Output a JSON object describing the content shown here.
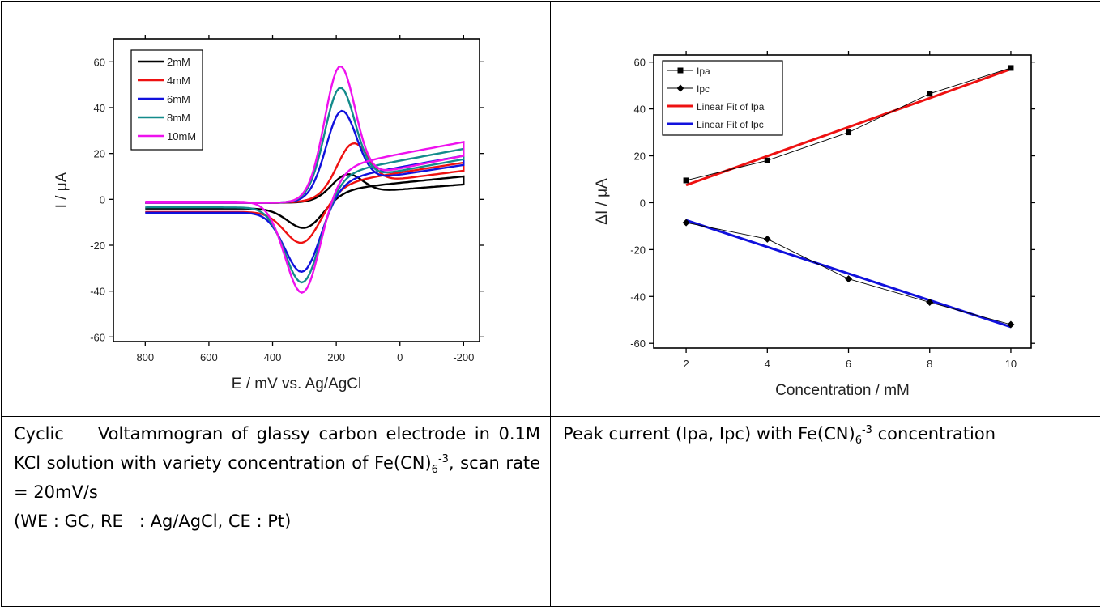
{
  "charts": [
    {
      "type": "line",
      "xlabel": "E / mV vs. Ag/AgCl",
      "ylabel": "I / μA",
      "xlim": [
        900,
        -250
      ],
      "ylim": [
        -62,
        70
      ],
      "xticks": [
        "800",
        "600",
        "400",
        "200",
        "0",
        "-200"
      ],
      "xtick_values": [
        800,
        600,
        400,
        200,
        0,
        -200
      ],
      "yticks": [
        "-60",
        "-40",
        "-20",
        "0",
        "20",
        "40",
        "60"
      ],
      "ytick_values": [
        -60,
        -40,
        -20,
        0,
        20,
        40,
        60
      ],
      "legend_position": "top-left",
      "series": [
        {
          "name": "2mM",
          "color": "#000000",
          "ipa": 9.5,
          "ipc": -10.5,
          "epa": 170,
          "epc": 290,
          "low_start": -5.5,
          "low_end": 5.5,
          "high_start": -4.0,
          "high_end": 10.0
        },
        {
          "name": "4mM",
          "color": "#ee1111",
          "ipa": 19.5,
          "ipc": -16.0,
          "epa": 150,
          "epc": 300,
          "low_start": -6.5,
          "low_end": 11.5,
          "high_start": -5.5,
          "high_end": 16.0
        },
        {
          "name": "6mM",
          "color": "#1111dd",
          "ipa": 36.5,
          "ipc": -29.5,
          "epa": 190,
          "epc": 300,
          "low_start": -7.0,
          "low_end": 14.0,
          "high_start": -5.8,
          "high_end": 19.0
        },
        {
          "name": "8mM",
          "color": "#138b8b",
          "ipa": 47.5,
          "ipc": -37.0,
          "epa": 195,
          "epc": 300,
          "low_start": -8.5,
          "low_end": 16.5,
          "high_start": -3.5,
          "high_end": 22.0
        },
        {
          "name": "10mM",
          "color": "#ee11ee",
          "ipa": 57.5,
          "ipc": -44.5,
          "epa": 195,
          "epc": 300,
          "low_start": -9.5,
          "low_end": 18.0,
          "high_start": -1.0,
          "high_end": 25.0
        }
      ]
    },
    {
      "type": "line",
      "xlabel": "Concentration / mM",
      "ylabel": "ΔI / μA",
      "xlim": [
        1.2,
        10.5
      ],
      "ylim": [
        -62,
        63
      ],
      "xticks": [
        "2",
        "4",
        "6",
        "8",
        "10"
      ],
      "xtick_values": [
        2,
        4,
        6,
        8,
        10
      ],
      "yticks": [
        "-60",
        "-40",
        "-20",
        "0",
        "20",
        "40",
        "60"
      ],
      "ytick_values": [
        -60,
        -40,
        -20,
        0,
        20,
        40,
        60
      ],
      "legend_position": "top-left",
      "series": [
        {
          "name": "Ipa",
          "marker": "square",
          "color": "#000000",
          "x": [
            2,
            4,
            6,
            8,
            10
          ],
          "y": [
            9.5,
            18.0,
            30.0,
            46.5,
            57.5
          ]
        },
        {
          "name": "Ipc",
          "marker": "diamond",
          "color": "#000000",
          "x": [
            2,
            4,
            6,
            8,
            10
          ],
          "y": [
            -8.5,
            -15.5,
            -32.5,
            -42.5,
            -52.0
          ]
        }
      ],
      "fits": [
        {
          "name": "Linear Fit of Ipa",
          "color": "#ee1111",
          "x": [
            2,
            10
          ],
          "y": [
            7.5,
            57.0
          ]
        },
        {
          "name": "Linear Fit of Ipc",
          "color": "#1111dd",
          "x": [
            2,
            10
          ],
          "y": [
            -7.5,
            -53.0
          ]
        }
      ]
    }
  ],
  "captions": {
    "left": {
      "line1": "Cyclic    Voltammogran of glassy carbon electrode in 0.1M KCl solution with variety concentration of Fe(CN)",
      "sub": "6",
      "sup": "-3",
      "line1_end": ", scan rate = 20mV/s",
      "line2": "(WE : GC, RE   : Ag/AgCl, CE : Pt)"
    },
    "right": {
      "text": "Peak current (Ipa, Ipc) with Fe(CN)",
      "sub": "6",
      "sup": "-3",
      "text_end": " concentration"
    }
  }
}
